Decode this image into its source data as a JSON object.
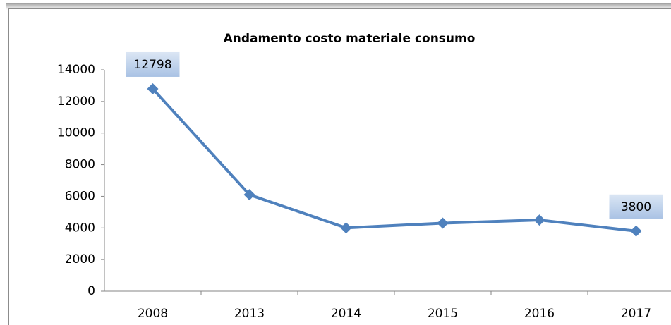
{
  "chart_data": {
    "type": "line",
    "title": "Andamento  costo  materiale consumo",
    "categories": [
      "2008",
      "2013",
      "2014",
      "2015",
      "2016",
      "2017"
    ],
    "series": [
      {
        "name": "costo materiale consumo",
        "color": "#4f81bd",
        "values": [
          12798,
          6100,
          4000,
          4300,
          4500,
          3800
        ]
      }
    ],
    "ylim": [
      0,
      14000
    ],
    "yticks": [
      0,
      2000,
      4000,
      6000,
      8000,
      10000,
      12000,
      14000
    ],
    "grid": false,
    "legend": false
  }
}
